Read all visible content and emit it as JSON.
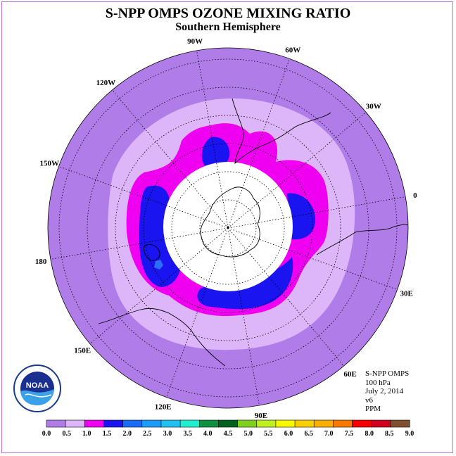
{
  "title": "S-NPP OMPS OZONE MIXING RATIO",
  "subtitle": "Southern Hemisphere",
  "longitude_labels": [
    "90W",
    "60W",
    "30W",
    "0",
    "30E",
    "60E",
    "90E",
    "120E",
    "150E",
    "180",
    "150W",
    "120W"
  ],
  "info": {
    "instrument": "S-NPP OMPS",
    "level": "100 hPa",
    "date": "July 2, 2014",
    "version": "v6",
    "units": "PPM"
  },
  "logo": {
    "text": "NOAA",
    "icon": "noaa-logo-icon"
  },
  "colors": {
    "bg_low": "#b07de8",
    "band_0_5": "#dcb6f8",
    "band_1_0": "#f000f0",
    "band_1_5": "#1a14f0",
    "band_2_0": "#2b6cf8",
    "no_data": "#ffffff"
  },
  "colorbar": {
    "ticks": [
      "0.0",
      "0.5",
      "1.0",
      "1.5",
      "2.0",
      "2.5",
      "3.0",
      "3.5",
      "4.0",
      "4.5",
      "5.0",
      "5.5",
      "6.0",
      "6.5",
      "7.0",
      "7.5",
      "8.0",
      "8.5",
      "9.0"
    ],
    "colors": [
      "#b07de8",
      "#dcb6f8",
      "#f000f0",
      "#1a14f0",
      "#1a6cf8",
      "#1a9cf8",
      "#20c0f0",
      "#20f0d0",
      "#109040",
      "#006020",
      "#80d020",
      "#c0f020",
      "#f8f800",
      "#f8d000",
      "#f8b000",
      "#f87800",
      "#f80000",
      "#d00020",
      "#805030"
    ]
  }
}
